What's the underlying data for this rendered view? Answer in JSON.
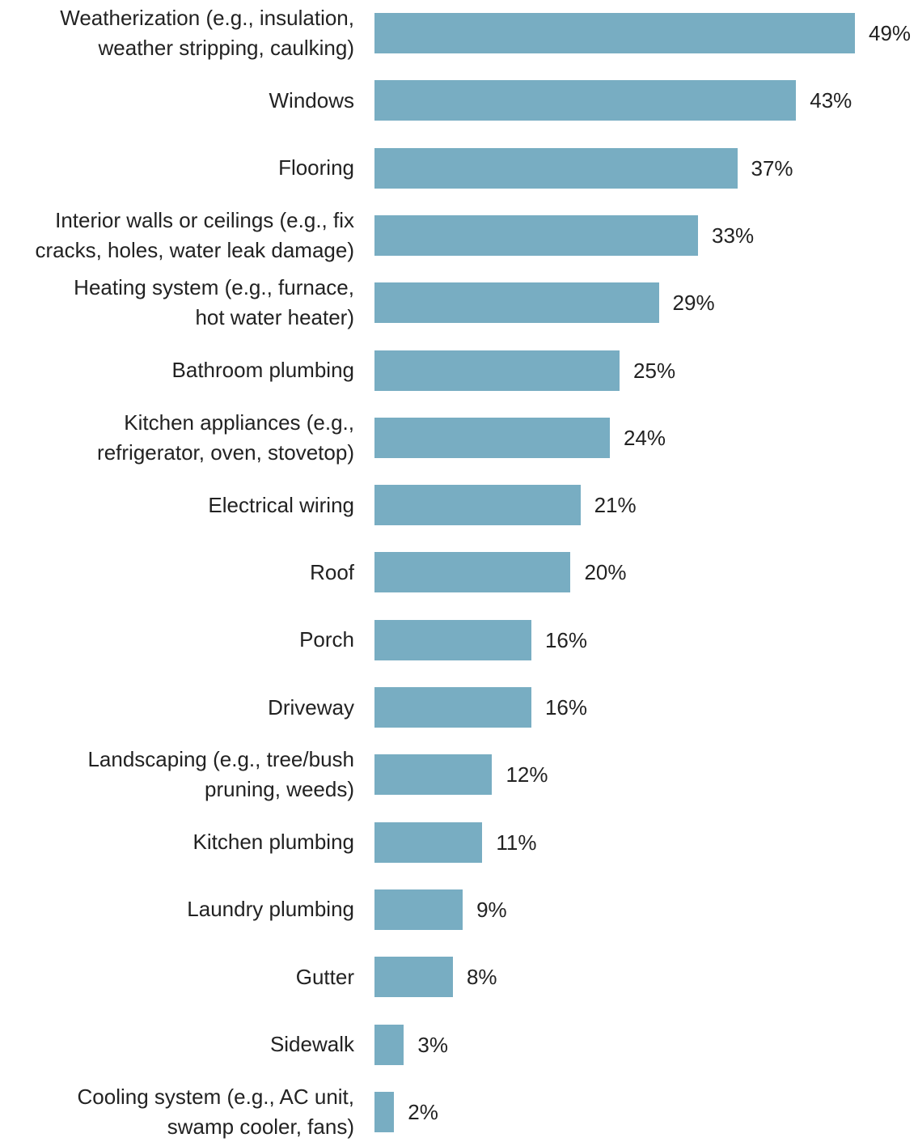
{
  "chart_data": {
    "type": "bar",
    "orientation": "horizontal",
    "title": "",
    "xlabel": "",
    "ylabel": "",
    "xlim": [
      0,
      49
    ],
    "grid": false,
    "legend": "none",
    "bar_color": "#78adc2",
    "categories": [
      "Weatherization (e.g., insulation,\nweather stripping, caulking)",
      "Windows",
      "Flooring",
      "Interior walls or ceilings (e.g., fix\ncracks, holes, water leak damage)",
      "Heating system (e.g., furnace,\nhot water heater)",
      "Bathroom plumbing",
      "Kitchen appliances (e.g.,\nrefrigerator, oven, stovetop)",
      "Electrical wiring",
      "Roof",
      "Porch",
      "Driveway",
      "Landscaping (e.g., tree/bush\npruning, weeds)",
      "Kitchen plumbing",
      "Laundry plumbing",
      "Gutter",
      "Sidewalk",
      "Cooling system (e.g., AC unit,\nswamp cooler, fans)"
    ],
    "values": [
      49,
      43,
      37,
      33,
      29,
      25,
      24,
      21,
      20,
      16,
      16,
      12,
      11,
      9,
      8,
      3,
      2
    ],
    "data_labels": [
      "49%",
      "43%",
      "37%",
      "33%",
      "29%",
      "25%",
      "24%",
      "21%",
      "20%",
      "16%",
      "16%",
      "12%",
      "11%",
      "9%",
      "8%",
      "3%",
      "2%"
    ]
  }
}
